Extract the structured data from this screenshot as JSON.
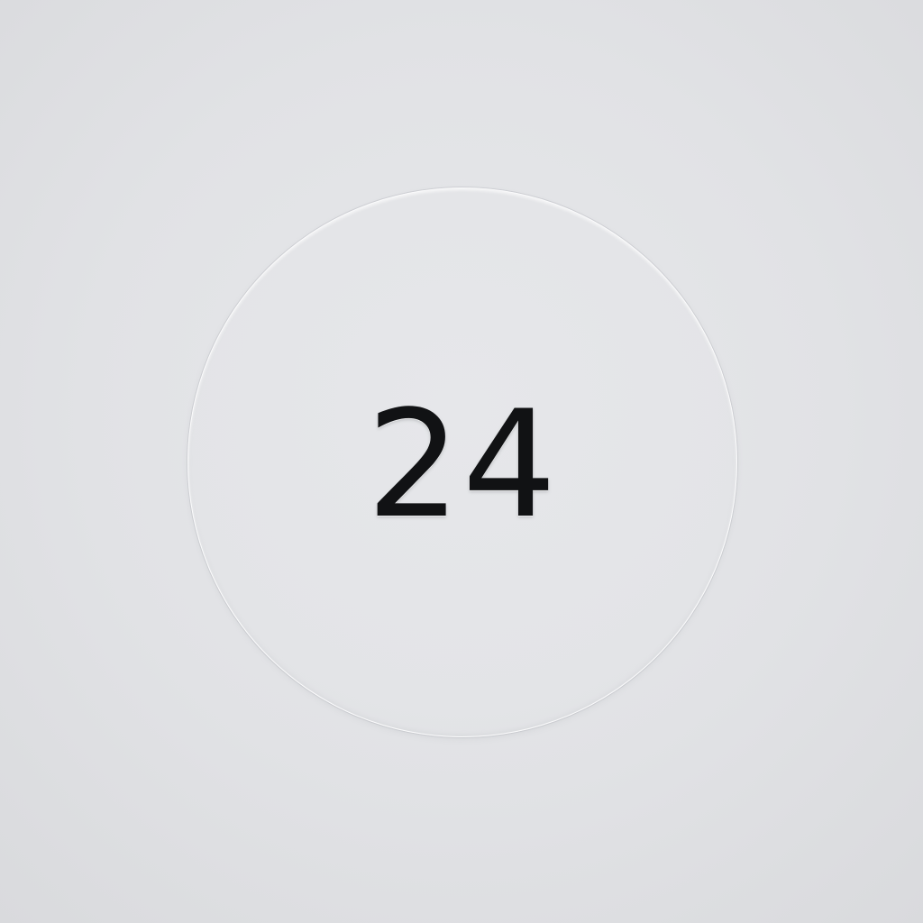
{
  "badge": {
    "value": "24"
  },
  "colors": {
    "background": "#e1e2e5",
    "badge_fill": "#e4e5e8",
    "badge_rim": "#ffffff",
    "text": "#111214"
  }
}
